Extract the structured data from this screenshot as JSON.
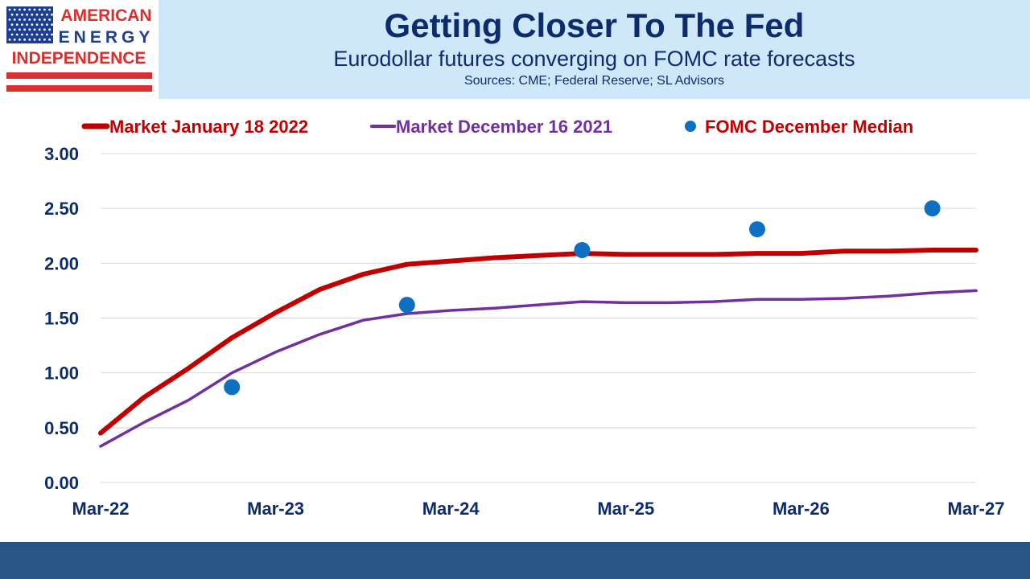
{
  "logo": {
    "line1": "AMERICAN",
    "line2": "ENERGY",
    "line3": "INDEPENDENCE",
    "colors": {
      "red": "#d8302f",
      "blue": "#1c3f94"
    },
    "icon": "us-flag-icon"
  },
  "header": {
    "title": "Getting Closer To The Fed",
    "subtitle": "Eurodollar futures converging on FOMC rate forecasts",
    "sources": "Sources: CME; Federal Reserve; SL Advisors",
    "background": "#cfe8f9",
    "text_color": "#0d2c6c"
  },
  "chart_data": {
    "type": "line",
    "x_ticks": [
      "Mar-22",
      "Mar-23",
      "Mar-24",
      "Mar-25",
      "Mar-26",
      "Mar-27"
    ],
    "y_ticks": [
      "0.00",
      "0.50",
      "1.00",
      "1.50",
      "2.00",
      "2.50",
      "3.00"
    ],
    "xlim": [
      2022.0,
      2027.0
    ],
    "ylim": [
      0,
      3
    ],
    "grid": "horizontal",
    "legend_position": "top",
    "series": [
      {
        "name": "Market January 18 2022",
        "type": "line",
        "color": "#c00000",
        "x": [
          2022.0,
          2022.25,
          2022.5,
          2022.75,
          2023.0,
          2023.25,
          2023.5,
          2023.75,
          2024.0,
          2024.25,
          2024.5,
          2024.75,
          2025.0,
          2025.25,
          2025.5,
          2025.75,
          2026.0,
          2026.25,
          2026.5,
          2026.75,
          2027.0
        ],
        "values": [
          0.45,
          0.78,
          1.04,
          1.32,
          1.55,
          1.76,
          1.9,
          1.99,
          2.02,
          2.05,
          2.07,
          2.09,
          2.08,
          2.08,
          2.08,
          2.09,
          2.09,
          2.11,
          2.11,
          2.12,
          2.12
        ]
      },
      {
        "name": "Market December 16 2021",
        "type": "line",
        "color": "#7030a0",
        "x": [
          2022.0,
          2022.25,
          2022.5,
          2022.75,
          2023.0,
          2023.25,
          2023.5,
          2023.75,
          2024.0,
          2024.25,
          2024.5,
          2024.75,
          2025.0,
          2025.25,
          2025.5,
          2025.75,
          2026.0,
          2026.25,
          2026.5,
          2026.75,
          2027.0
        ],
        "values": [
          0.33,
          0.55,
          0.75,
          1.0,
          1.19,
          1.35,
          1.48,
          1.54,
          1.57,
          1.59,
          1.62,
          1.65,
          1.64,
          1.64,
          1.65,
          1.67,
          1.67,
          1.68,
          1.7,
          1.73,
          1.75
        ]
      },
      {
        "name": "FOMC December Median",
        "type": "scatter",
        "color": "#0f6fc0",
        "label_color": "#c00000",
        "x": [
          2022.75,
          2023.75,
          2024.75,
          2025.75,
          2026.75
        ],
        "values": [
          0.87,
          1.62,
          2.12,
          2.31,
          2.5
        ]
      }
    ]
  }
}
